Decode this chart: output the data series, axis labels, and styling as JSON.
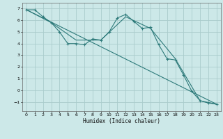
{
  "xlabel": "Humidex (Indice chaleur)",
  "ylabel": "",
  "bg_color": "#cce8e8",
  "grid_color": "#aacccc",
  "line_color": "#2d7a7a",
  "xlim": [
    -0.5,
    23.5
  ],
  "ylim": [
    -1.8,
    7.5
  ],
  "yticks": [
    -1,
    0,
    1,
    2,
    3,
    4,
    5,
    6,
    7
  ],
  "xticks": [
    0,
    1,
    2,
    3,
    4,
    5,
    6,
    7,
    8,
    9,
    10,
    11,
    12,
    13,
    14,
    15,
    16,
    17,
    18,
    19,
    20,
    21,
    22,
    23
  ],
  "line1_x": [
    0,
    1,
    2,
    3,
    4,
    5,
    6,
    7,
    8,
    9,
    10,
    11,
    12,
    13,
    14,
    15,
    16,
    17,
    18,
    19,
    20,
    21,
    22,
    23
  ],
  "line1_y": [
    6.9,
    6.9,
    6.3,
    5.8,
    5.0,
    4.0,
    4.0,
    3.9,
    4.4,
    4.3,
    5.0,
    6.2,
    6.5,
    5.9,
    5.3,
    5.4,
    3.9,
    2.7,
    2.6,
    1.3,
    -0.1,
    -0.9,
    -1.1,
    -1.2
  ],
  "line2_x": [
    0,
    3,
    6,
    9,
    12,
    15,
    18,
    21,
    23
  ],
  "line2_y": [
    6.9,
    5.8,
    4.3,
    4.3,
    6.3,
    5.3,
    2.7,
    -0.9,
    -1.2
  ],
  "line3_x": [
    0,
    23
  ],
  "line3_y": [
    6.9,
    -1.2
  ]
}
